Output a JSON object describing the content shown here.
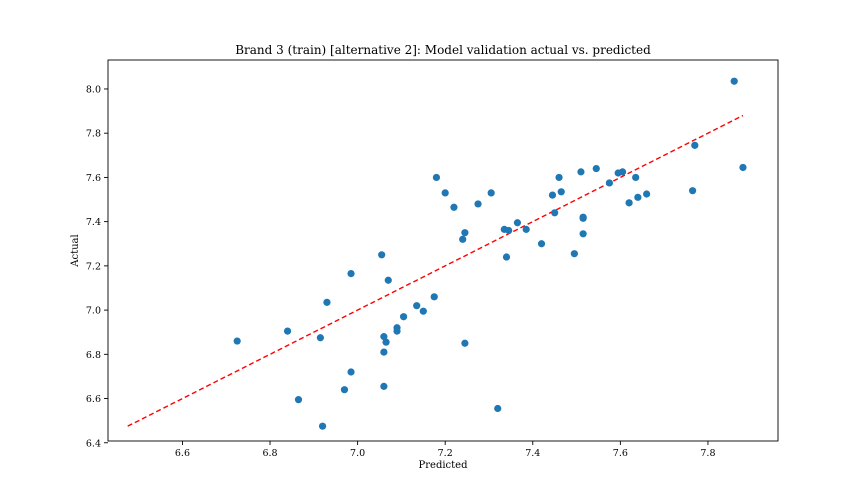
{
  "chart_data": {
    "type": "scatter",
    "title": "Brand 3 (train) [alternative 2]: Model validation actual vs. predicted",
    "xlabel": "Predicted",
    "ylabel": "Actual",
    "xlim": [
      6.43,
      7.96
    ],
    "ylim": [
      6.408,
      8.131
    ],
    "xticks": [
      "6.6",
      "6.8",
      "7.0",
      "7.2",
      "7.4",
      "7.6",
      "7.8"
    ],
    "yticks": [
      "6.4",
      "6.6",
      "6.8",
      "7.0",
      "7.2",
      "7.4",
      "7.6",
      "7.8",
      "8.0"
    ],
    "grid": false,
    "point_color": "#1f77b4",
    "line_color": "#ff0000",
    "reference_line": {
      "x": [
        6.475,
        7.88
      ],
      "y": [
        6.475,
        7.88
      ]
    },
    "points": [
      [
        6.725,
        6.86
      ],
      [
        6.84,
        6.905
      ],
      [
        6.865,
        6.595
      ],
      [
        6.915,
        6.875
      ],
      [
        6.92,
        6.475
      ],
      [
        6.93,
        7.035
      ],
      [
        6.97,
        6.64
      ],
      [
        6.985,
        6.72
      ],
      [
        6.985,
        7.165
      ],
      [
        7.055,
        7.25
      ],
      [
        7.06,
        6.81
      ],
      [
        7.06,
        6.88
      ],
      [
        7.06,
        6.655
      ],
      [
        7.065,
        6.855
      ],
      [
        7.07,
        7.135
      ],
      [
        7.09,
        6.92
      ],
      [
        7.09,
        6.905
      ],
      [
        7.105,
        6.97
      ],
      [
        7.135,
        7.02
      ],
      [
        7.15,
        6.995
      ],
      [
        7.175,
        7.06
      ],
      [
        7.18,
        7.6
      ],
      [
        7.2,
        7.53
      ],
      [
        7.22,
        7.465
      ],
      [
        7.24,
        7.32
      ],
      [
        7.245,
        7.35
      ],
      [
        7.245,
        6.85
      ],
      [
        7.275,
        7.48
      ],
      [
        7.305,
        7.53
      ],
      [
        7.32,
        6.555
      ],
      [
        7.335,
        7.365
      ],
      [
        7.34,
        7.24
      ],
      [
        7.345,
        7.36
      ],
      [
        7.365,
        7.395
      ],
      [
        7.385,
        7.365
      ],
      [
        7.42,
        7.3
      ],
      [
        7.445,
        7.52
      ],
      [
        7.45,
        7.44
      ],
      [
        7.46,
        7.6
      ],
      [
        7.465,
        7.535
      ],
      [
        7.495,
        7.255
      ],
      [
        7.51,
        7.625
      ],
      [
        7.515,
        7.345
      ],
      [
        7.515,
        7.415
      ],
      [
        7.515,
        7.42
      ],
      [
        7.545,
        7.64
      ],
      [
        7.575,
        7.575
      ],
      [
        7.595,
        7.62
      ],
      [
        7.605,
        7.625
      ],
      [
        7.62,
        7.485
      ],
      [
        7.635,
        7.6
      ],
      [
        7.64,
        7.51
      ],
      [
        7.66,
        7.525
      ],
      [
        7.765,
        7.54
      ],
      [
        7.77,
        7.745
      ],
      [
        7.86,
        8.035
      ],
      [
        7.88,
        7.645
      ]
    ]
  }
}
